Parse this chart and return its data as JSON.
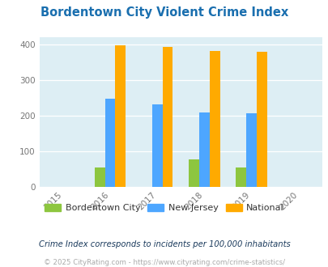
{
  "title": "Bordentown City Violent Crime Index",
  "title_color": "#1a6faf",
  "years": [
    2015,
    2016,
    2017,
    2018,
    2019,
    2020
  ],
  "bar_years": [
    2016,
    2017,
    2018,
    2019
  ],
  "city_values": [
    55,
    0,
    78,
    55
  ],
  "nj_values": [
    247,
    231,
    210,
    207
  ],
  "national_values": [
    397,
    393,
    381,
    379
  ],
  "city_color": "#8dc63f",
  "nj_color": "#4da6ff",
  "national_color": "#ffaa00",
  "bg_color": "#ddeef4",
  "xlim": [
    2014.5,
    2020.5
  ],
  "ylim": [
    0,
    420
  ],
  "yticks": [
    0,
    100,
    200,
    300,
    400
  ],
  "bar_width": 0.22,
  "footnote1": "Crime Index corresponds to incidents per 100,000 inhabitants",
  "footnote2": "© 2025 CityRating.com - https://www.cityrating.com/crime-statistics/",
  "footnote1_color": "#1a3a5c",
  "footnote2_color": "#aaaaaa",
  "legend_labels": [
    "Bordentown City",
    "New Jersey",
    "National"
  ]
}
